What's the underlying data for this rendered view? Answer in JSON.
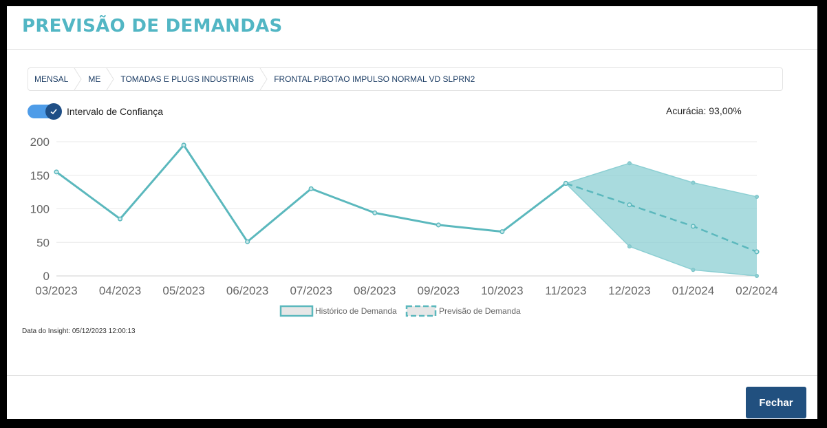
{
  "modal": {
    "title": "PREVISÃO DE DEMANDAS",
    "close_label": "Fechar"
  },
  "breadcrumb": [
    "MENSAL",
    "ME",
    "TOMADAS E PLUGS INDUSTRIAIS",
    "FRONTAL P/BOTAO IMPULSO NORMAL VD SLPRN2"
  ],
  "toggle": {
    "label": "Intervalo de Confiança",
    "on": true
  },
  "accuracy_text": "Acurácia: 93,00%",
  "insight_text": "Data do Insight: 05/12/2023 12:00:13",
  "colors": {
    "title": "#52b6c4",
    "line": "#5bb8bd",
    "band": "#8ccfd3",
    "button": "#21507f",
    "toggle": "#4e9ce8"
  },
  "chart_data": {
    "type": "line",
    "categories": [
      "03/2023",
      "04/2023",
      "05/2023",
      "06/2023",
      "07/2023",
      "08/2023",
      "09/2023",
      "10/2023",
      "11/2023",
      "12/2023",
      "01/2024",
      "02/2024"
    ],
    "ylim": [
      0,
      200
    ],
    "yticks": [
      "200",
      "150",
      "100",
      "50",
      "0"
    ],
    "grid": true,
    "legend_position": "bottom",
    "series": [
      {
        "name": "Histórico de Demanda",
        "style": "solid",
        "values": [
          155,
          85,
          195,
          51,
          130,
          94,
          76,
          66,
          138,
          null,
          null,
          null
        ]
      },
      {
        "name": "Previsão de Demanda",
        "style": "dashed",
        "values": [
          null,
          null,
          null,
          null,
          null,
          null,
          null,
          null,
          138,
          106,
          74,
          36
        ]
      }
    ],
    "confidence_interval": {
      "upper": [
        null,
        null,
        null,
        null,
        null,
        null,
        null,
        null,
        138,
        168,
        139,
        118
      ],
      "lower": [
        null,
        null,
        null,
        null,
        null,
        null,
        null,
        null,
        138,
        44,
        9,
        0
      ]
    }
  }
}
